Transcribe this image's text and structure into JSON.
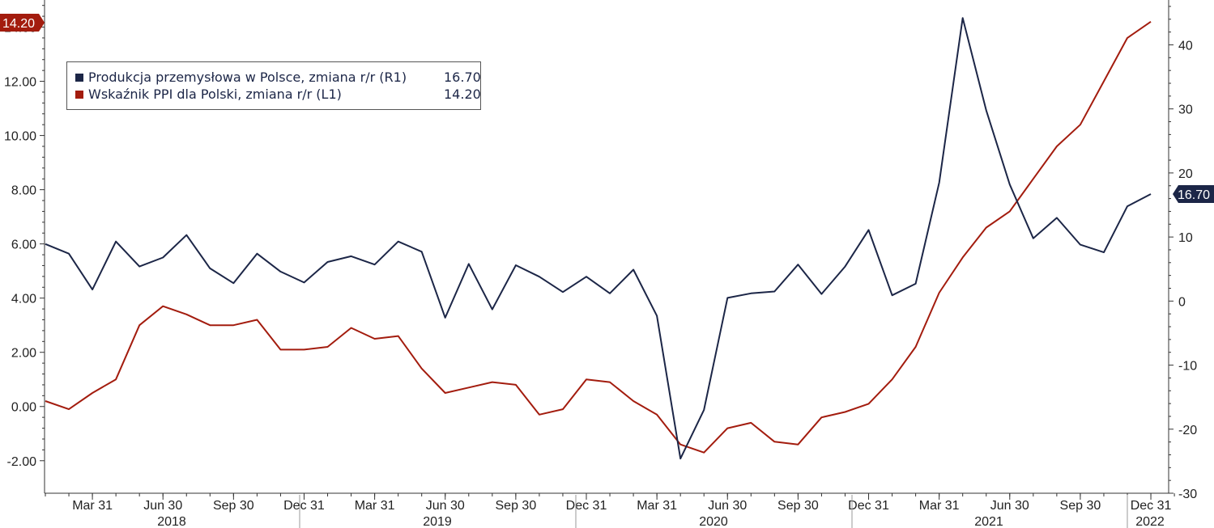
{
  "chart_data": {
    "type": "line",
    "x_dates": [
      "2018-01",
      "2018-02",
      "2018-03",
      "2018-04",
      "2018-05",
      "2018-06",
      "2018-07",
      "2018-08",
      "2018-09",
      "2018-10",
      "2018-11",
      "2018-12",
      "2019-01",
      "2019-02",
      "2019-03",
      "2019-04",
      "2019-05",
      "2019-06",
      "2019-07",
      "2019-08",
      "2019-09",
      "2019-10",
      "2019-11",
      "2019-12",
      "2020-01",
      "2020-02",
      "2020-03",
      "2020-04",
      "2020-05",
      "2020-06",
      "2020-07",
      "2020-08",
      "2020-09",
      "2020-10",
      "2020-11",
      "2020-12",
      "2021-01",
      "2021-02",
      "2021-03",
      "2021-04",
      "2021-05",
      "2021-06",
      "2021-07",
      "2021-08",
      "2021-09",
      "2021-10",
      "2021-11",
      "2021-12",
      "2022-01"
    ],
    "series": [
      {
        "name": "Produkcja przemysłowa w Polsce, zmiana r/r (R1)",
        "last_value_label": "16.70",
        "axis": "right",
        "color": "#1c2647",
        "values": [
          8.9,
          7.4,
          1.8,
          9.3,
          5.4,
          6.8,
          10.3,
          5.1,
          2.8,
          7.4,
          4.6,
          2.9,
          6.1,
          7.0,
          5.7,
          9.3,
          7.7,
          -2.6,
          5.8,
          -1.3,
          5.6,
          3.8,
          1.4,
          3.8,
          1.2,
          4.9,
          -2.3,
          -24.6,
          -17.0,
          0.5,
          1.2,
          1.5,
          5.7,
          1.1,
          5.4,
          11.1,
          0.9,
          2.7,
          18.5,
          44.2,
          29.8,
          18.2,
          9.8,
          13.0,
          8.8,
          7.6,
          14.8,
          16.7,
          16.7
        ]
      },
      {
        "name": "Wskaźnik PPI dla Polski, zmiana r/r (L1)",
        "last_value_label": "14.20",
        "axis": "left",
        "color": "#a31c0e",
        "values": [
          0.2,
          -0.1,
          0.5,
          1.0,
          3.0,
          3.7,
          3.4,
          3.0,
          3.0,
          3.2,
          2.1,
          2.1,
          2.2,
          2.9,
          2.5,
          2.6,
          1.4,
          0.5,
          0.7,
          0.9,
          0.8,
          -0.3,
          -0.1,
          1.0,
          0.9,
          0.2,
          -0.3,
          -1.4,
          -1.7,
          -0.8,
          -0.6,
          -1.3,
          -1.4,
          -0.4,
          -0.2,
          0.1,
          1.0,
          2.2,
          4.2,
          5.5,
          6.6,
          7.2,
          8.4,
          9.6,
          10.4,
          12.0,
          13.6,
          14.2,
          14.2
        ]
      }
    ],
    "y_left": {
      "min": -3.2,
      "max": 15.0,
      "ticks": [
        "-2.00",
        "0.00",
        "2.00",
        "4.00",
        "6.00",
        "8.00",
        "10.00",
        "12.00",
        "14.00"
      ],
      "tick_values": [
        -2,
        0,
        2,
        4,
        6,
        8,
        10,
        12,
        14
      ]
    },
    "y_right": {
      "min": -30.0,
      "max": 47.0,
      "ticks": [
        "-30",
        "-20",
        "-10",
        "0",
        "10",
        "20",
        "30",
        "40"
      ],
      "tick_values": [
        -30,
        -20,
        -10,
        0,
        10,
        20,
        30,
        40
      ]
    },
    "x_quarter_labels": [
      {
        "label": "Mar 31",
        "date": "2018-03"
      },
      {
        "label": "Jun 30",
        "date": "2018-06"
      },
      {
        "label": "Sep 30",
        "date": "2018-09"
      },
      {
        "label": "Dec 31",
        "date": "2018-12"
      },
      {
        "label": "Mar 31",
        "date": "2019-03"
      },
      {
        "label": "Jun 30",
        "date": "2019-06"
      },
      {
        "label": "Sep 30",
        "date": "2019-09"
      },
      {
        "label": "Dec 31",
        "date": "2019-12"
      },
      {
        "label": "Mar 31",
        "date": "2020-03"
      },
      {
        "label": "Jun 30",
        "date": "2020-06"
      },
      {
        "label": "Sep 30",
        "date": "2020-09"
      },
      {
        "label": "Dec 31",
        "date": "2020-12"
      },
      {
        "label": "Mar 31",
        "date": "2021-03"
      },
      {
        "label": "Jun 30",
        "date": "2021-06"
      },
      {
        "label": "Sep 30",
        "date": "2021-09"
      },
      {
        "label": "Dec 31",
        "date": "2021-12"
      }
    ],
    "x_year_labels": [
      {
        "label": "2018",
        "start": "2018-01",
        "end": "2018-12"
      },
      {
        "label": "2019",
        "start": "2019-01",
        "end": "2019-12"
      },
      {
        "label": "2020",
        "start": "2020-01",
        "end": "2020-12"
      },
      {
        "label": "2021",
        "start": "2021-01",
        "end": "2021-12"
      },
      {
        "label": "2022",
        "start": "2022-01",
        "end": "2022-01"
      }
    ],
    "grid": false,
    "legend_position": "top-left"
  }
}
